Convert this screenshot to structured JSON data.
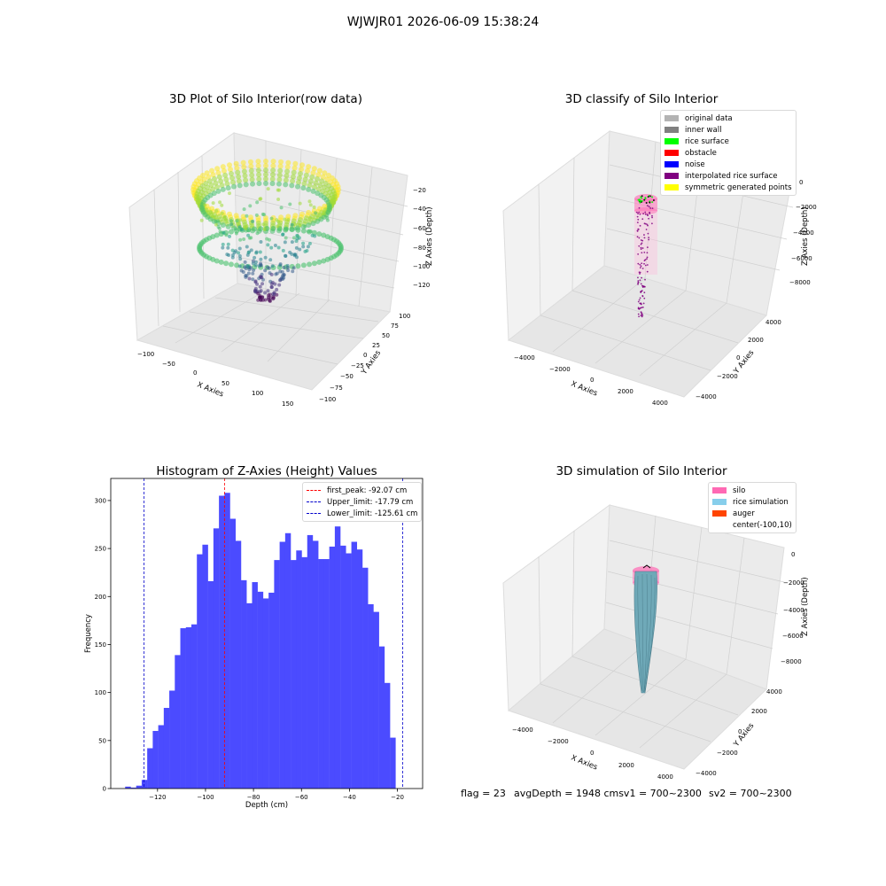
{
  "figure_title": "WJWJR01 2026-06-09 15:38:24",
  "status": {
    "flag": "flag = 23",
    "avg_depth": "avgDepth = 1948 cmsv1 = 700~2300",
    "sv2": "sv2 = 700~2300"
  },
  "colors": {
    "hist_bar": "#4b4bff",
    "peak_line": "#ff0000",
    "limit_line": "#0000cc",
    "silo": "#ff69b4",
    "rice_simulation": "#87ceeb",
    "auger": "#ff4500"
  },
  "chart_data": [
    {
      "type": "scatter3d",
      "title": "3D Plot of Silo Interior(row data)",
      "xlabel": "X Axies",
      "ylabel": "Y Axies",
      "zlabel": "Z Axies (Depth)",
      "x_ticks": [
        "−100",
        "−50",
        "0",
        "50",
        "100",
        "150"
      ],
      "y_ticks": [
        "−100",
        "−75",
        "−50",
        "−25",
        "0",
        "25",
        "50",
        "75",
        "100"
      ],
      "z_ticks": [
        "−20",
        "−40",
        "−60",
        "−80",
        "−100",
        "−120"
      ],
      "colormap": "viridis"
    },
    {
      "type": "scatter3d",
      "title": "3D classify of Silo Interior",
      "xlabel": "X Axies",
      "ylabel": "Y Axies",
      "zlabel": "Z Axies (Depth)",
      "x_ticks": [
        "−4000",
        "−2000",
        "0",
        "2000",
        "4000"
      ],
      "y_ticks": [
        "−4000",
        "−2000",
        "0",
        "2000",
        "4000"
      ],
      "z_ticks": [
        "0",
        "−2000",
        "−4000",
        "−6000",
        "−8000"
      ],
      "legend": [
        {
          "label": "original data",
          "color": "#b3b3b3"
        },
        {
          "label": "inner wall",
          "color": "#808080"
        },
        {
          "label": "rice surface",
          "color": "#00ff00"
        },
        {
          "label": "obstacle",
          "color": "#ff0000"
        },
        {
          "label": "noise",
          "color": "#0000ff"
        },
        {
          "label": "interpolated rice surface",
          "color": "#800080"
        },
        {
          "label": "symmetric generated points",
          "color": "#ffff00"
        }
      ]
    },
    {
      "type": "bar",
      "title": "Histogram of Z-Axies (Height) Values",
      "xlabel": "Depth (cm)",
      "ylabel": "Frequency",
      "xlim": [
        -139.5,
        -9.5
      ],
      "ylim": [
        0,
        323
      ],
      "x_ticks": [
        -120,
        -100,
        -80,
        -60,
        -40,
        -20
      ],
      "y_ticks": [
        0,
        50,
        100,
        150,
        200,
        250,
        300
      ],
      "bin_start": -133.5,
      "bin_width": 2.3,
      "values": [
        2,
        1,
        3,
        9,
        42,
        60,
        66,
        84,
        102,
        139,
        167,
        168,
        171,
        244,
        254,
        216,
        271,
        305,
        308,
        281,
        258,
        217,
        193,
        215,
        205,
        198,
        204,
        238,
        257,
        266,
        238,
        248,
        241,
        264,
        258,
        239,
        239,
        252,
        273,
        253,
        245,
        257,
        249,
        230,
        192,
        184,
        148,
        110,
        53
      ],
      "vlines": [
        {
          "label": "first_peak: -92.07 cm",
          "x": -92.07,
          "kind": "peak"
        },
        {
          "label": "Upper_limit: -17.79 cm",
          "x": -17.79,
          "kind": "limit"
        },
        {
          "label": "Lower_limit: -125.61 cm",
          "x": -125.61,
          "kind": "limit"
        }
      ]
    },
    {
      "type": "surface3d",
      "title": "3D simulation of Silo Interior",
      "xlabel": "X Axies",
      "ylabel": "Y Axies",
      "zlabel": "Z Axies (Depth)",
      "x_ticks": [
        "−4000",
        "−2000",
        "0",
        "2000",
        "4000"
      ],
      "y_ticks": [
        "−4000",
        "−2000",
        "0",
        "2000",
        "4000"
      ],
      "z_ticks": [
        "0",
        "−2000",
        "−4000",
        "−6000",
        "−8000"
      ],
      "legend": [
        {
          "label": "silo",
          "color": "#ff69b4"
        },
        {
          "label": "rice simulation",
          "color": "#87ceeb"
        },
        {
          "label": "auger",
          "color": "#ff4500"
        },
        {
          "label": "center(-100,10)",
          "color": ""
        }
      ]
    }
  ]
}
